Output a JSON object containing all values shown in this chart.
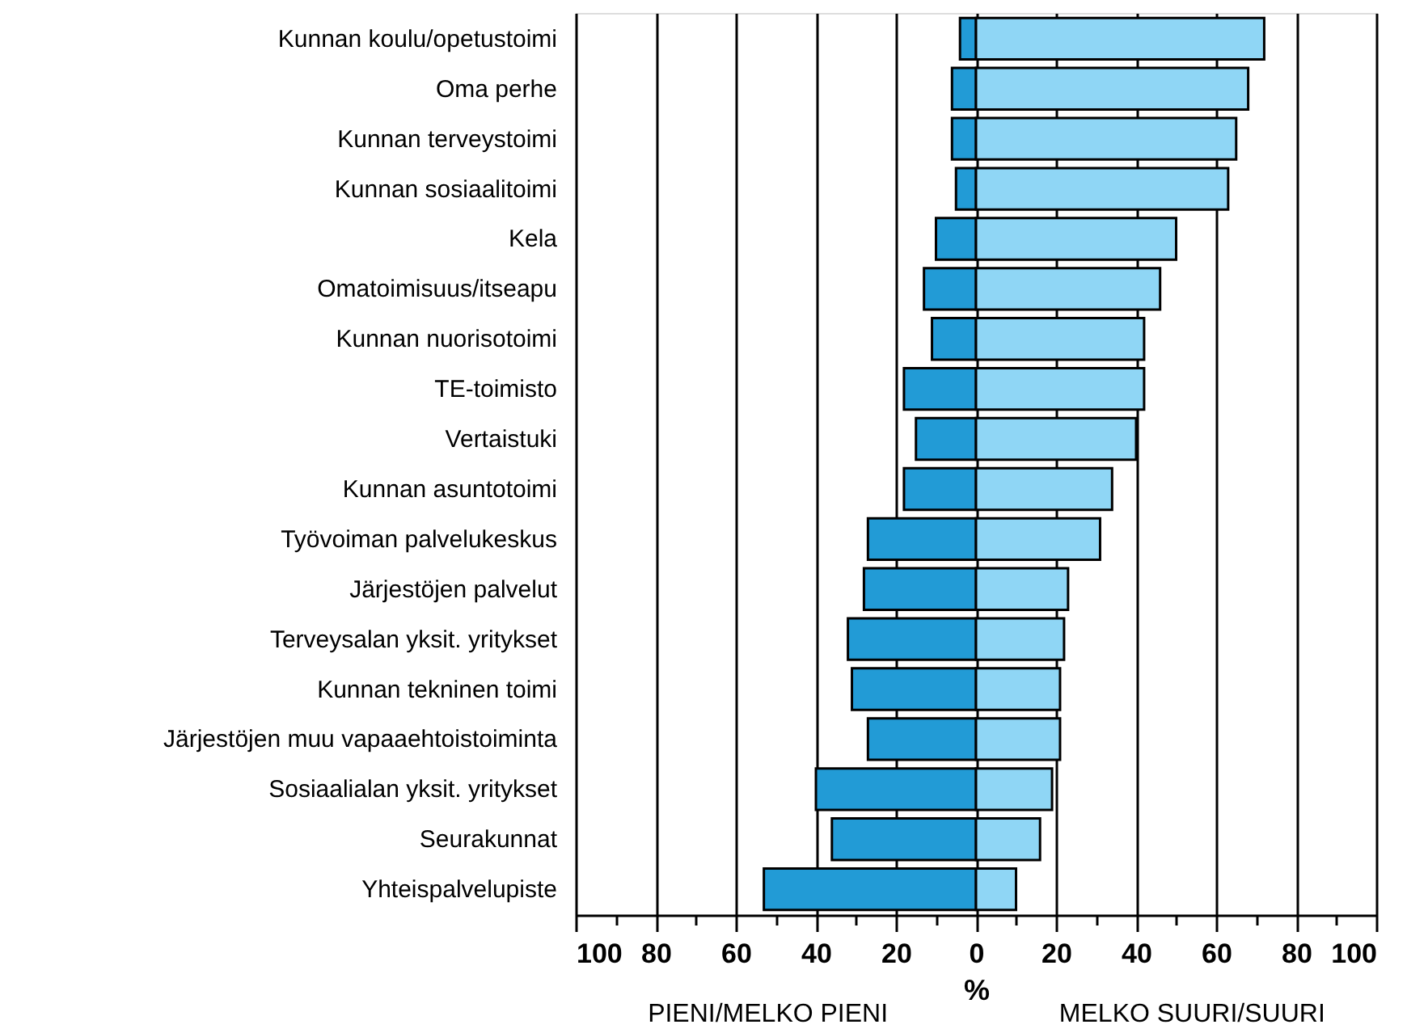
{
  "chart_data": {
    "type": "bar",
    "orientation": "horizontal",
    "stacked": true,
    "xlabel": "%",
    "annotations": [
      "PIENI/MELKO PIENI",
      "MELKO SUURI/SUURI"
    ],
    "categories": [
      "Kunnan koulu/opetustoimi",
      "Oma perhe",
      "Kunnan terveystoimi",
      "Kunnan sosiaalitoimi",
      "Kela",
      "Omatoimisuus/itseapu",
      "Kunnan nuorisotoimi",
      "TE-toimisto",
      "Vertaistuki",
      "Kunnan asuntotoimi",
      "Työvoiman palvelukeskus",
      "Järjestöjen palvelut",
      "Terveysalan yksit. yritykset",
      "Kunnan tekninen toimi",
      "Järjestöjen muu vapaaehtoistoiminta",
      "Sosiaalialan yksit. yritykset",
      "Seurakunnat",
      "Yhteispalvelupiste"
    ],
    "series": [
      {
        "color": "#229bd6",
        "values": [
          -4,
          -6,
          -6,
          -5,
          -10,
          -13,
          -11,
          -18,
          -15,
          -18,
          -27,
          -28,
          -32,
          -31,
          -27,
          -40,
          -36,
          -53
        ]
      },
      {
        "color": "#8fd6f5",
        "values": [
          72,
          68,
          65,
          63,
          50,
          46,
          42,
          42,
          40,
          34,
          31,
          23,
          22,
          21,
          21,
          19,
          16,
          10
        ]
      }
    ],
    "xlim": [
      -100,
      100
    ],
    "xticks": [
      {
        "value": -100,
        "label": "100"
      },
      {
        "value": -90,
        "label": null
      },
      {
        "value": -80,
        "label": "80"
      },
      {
        "value": -70,
        "label": null
      },
      {
        "value": -60,
        "label": "60"
      },
      {
        "value": -50,
        "label": null
      },
      {
        "value": -40,
        "label": "40"
      },
      {
        "value": -30,
        "label": null
      },
      {
        "value": -20,
        "label": "20"
      },
      {
        "value": -10,
        "label": null
      },
      0,
      {
        "value": 10,
        "label": null
      },
      20,
      {
        "value": 30,
        "label": null
      },
      40,
      {
        "value": 50,
        "label": null
      },
      60,
      {
        "value": 70,
        "label": null
      },
      80,
      {
        "value": 90,
        "label": null
      },
      100
    ],
    "grid": "x",
    "legend": false
  }
}
